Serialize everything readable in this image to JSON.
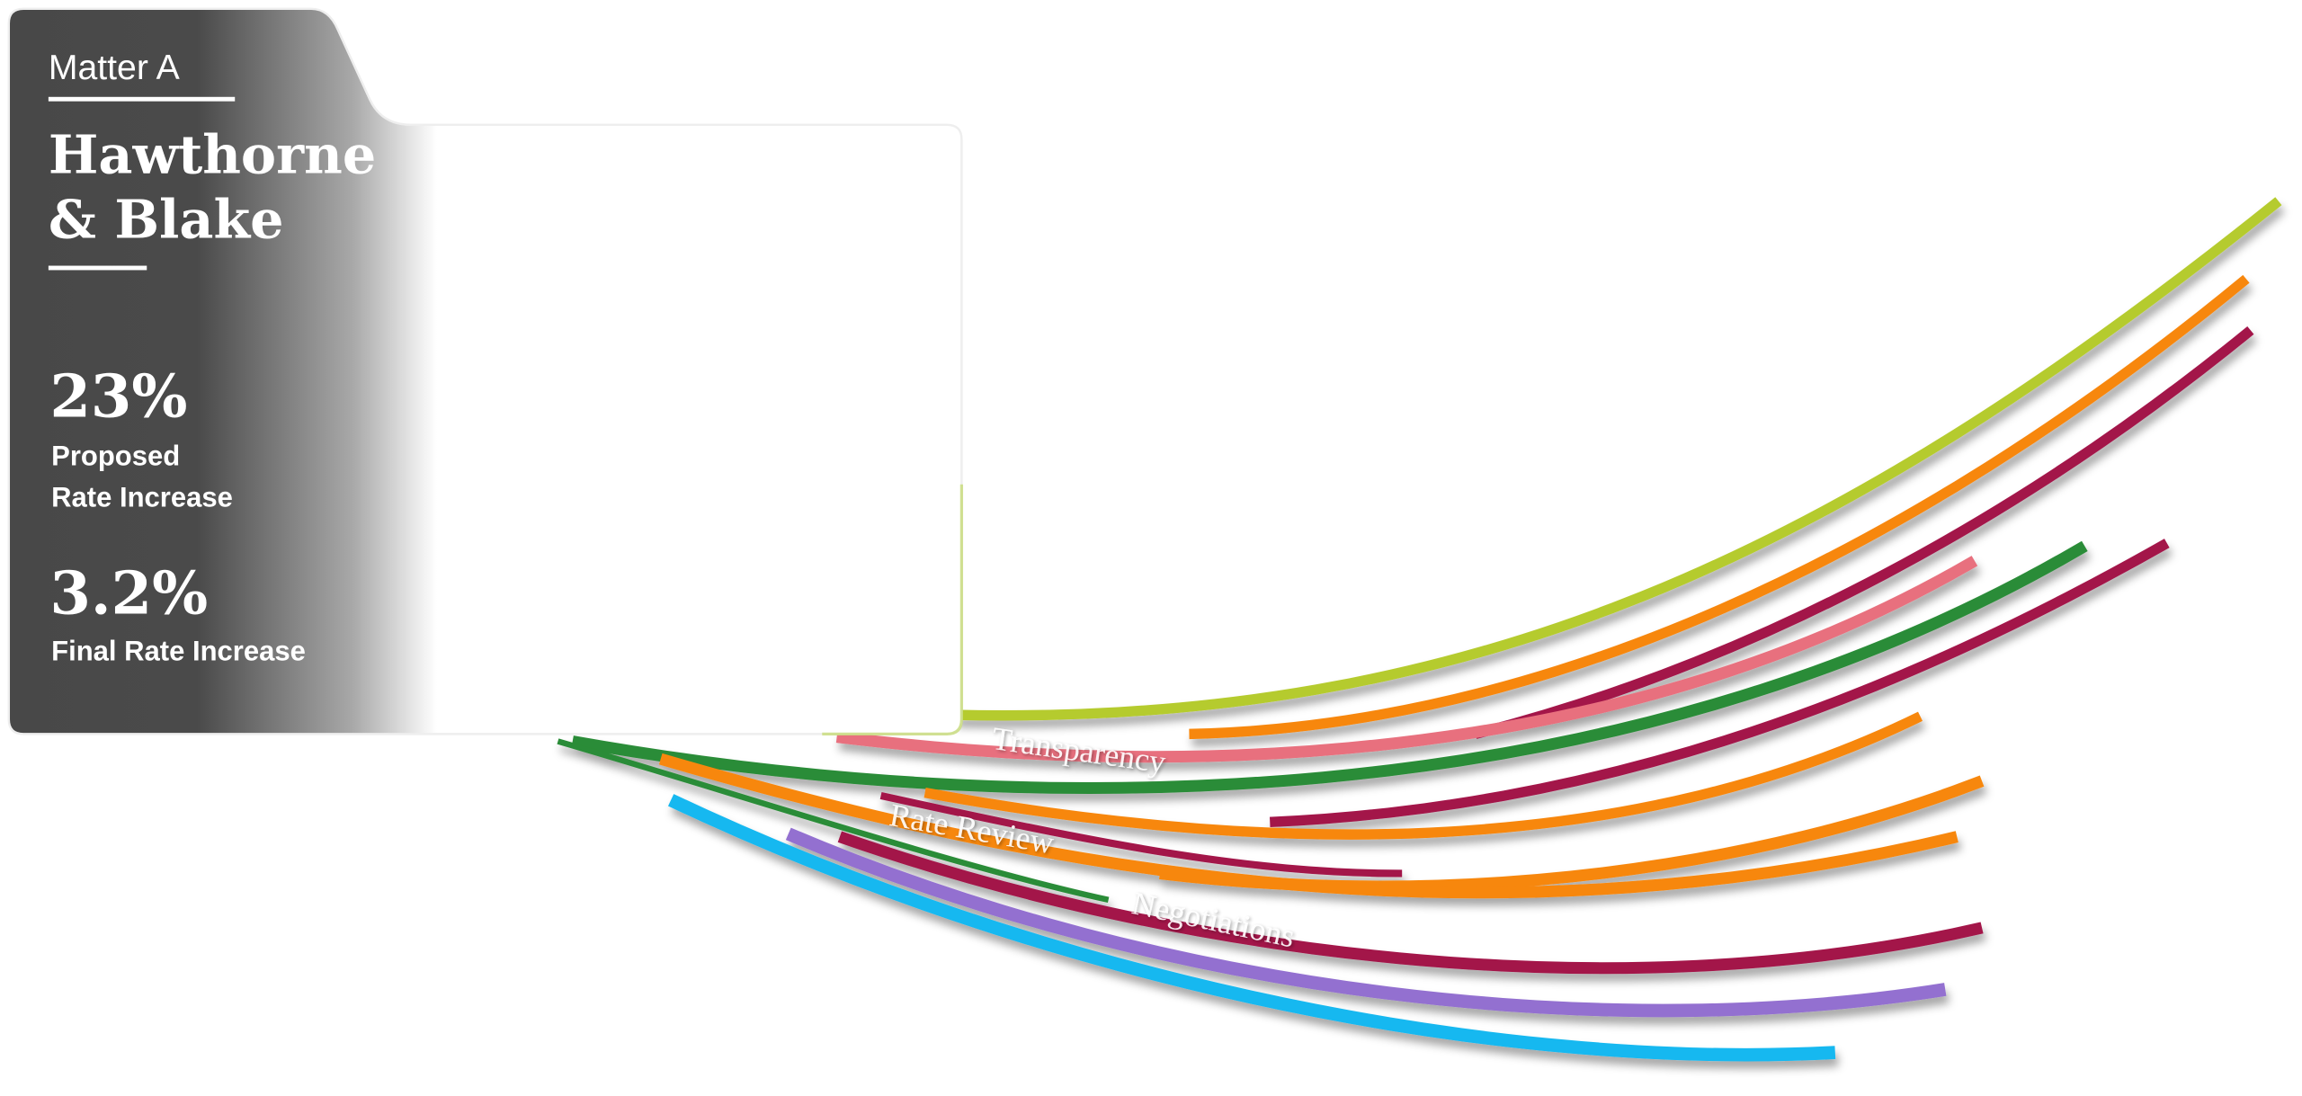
{
  "card": {
    "tab": "Matter A",
    "title_lines": [
      "Hawthorne",
      "& Blake"
    ],
    "stats": [
      {
        "value": "23%",
        "label_lines": [
          "Proposed",
          "Rate Increase"
        ]
      },
      {
        "value": "3.2%",
        "label_lines": [
          "Final Rate Increase"
        ]
      }
    ]
  },
  "ribbon_labels": [
    "Transparency",
    "Rate Review",
    "Negotiations"
  ]
}
